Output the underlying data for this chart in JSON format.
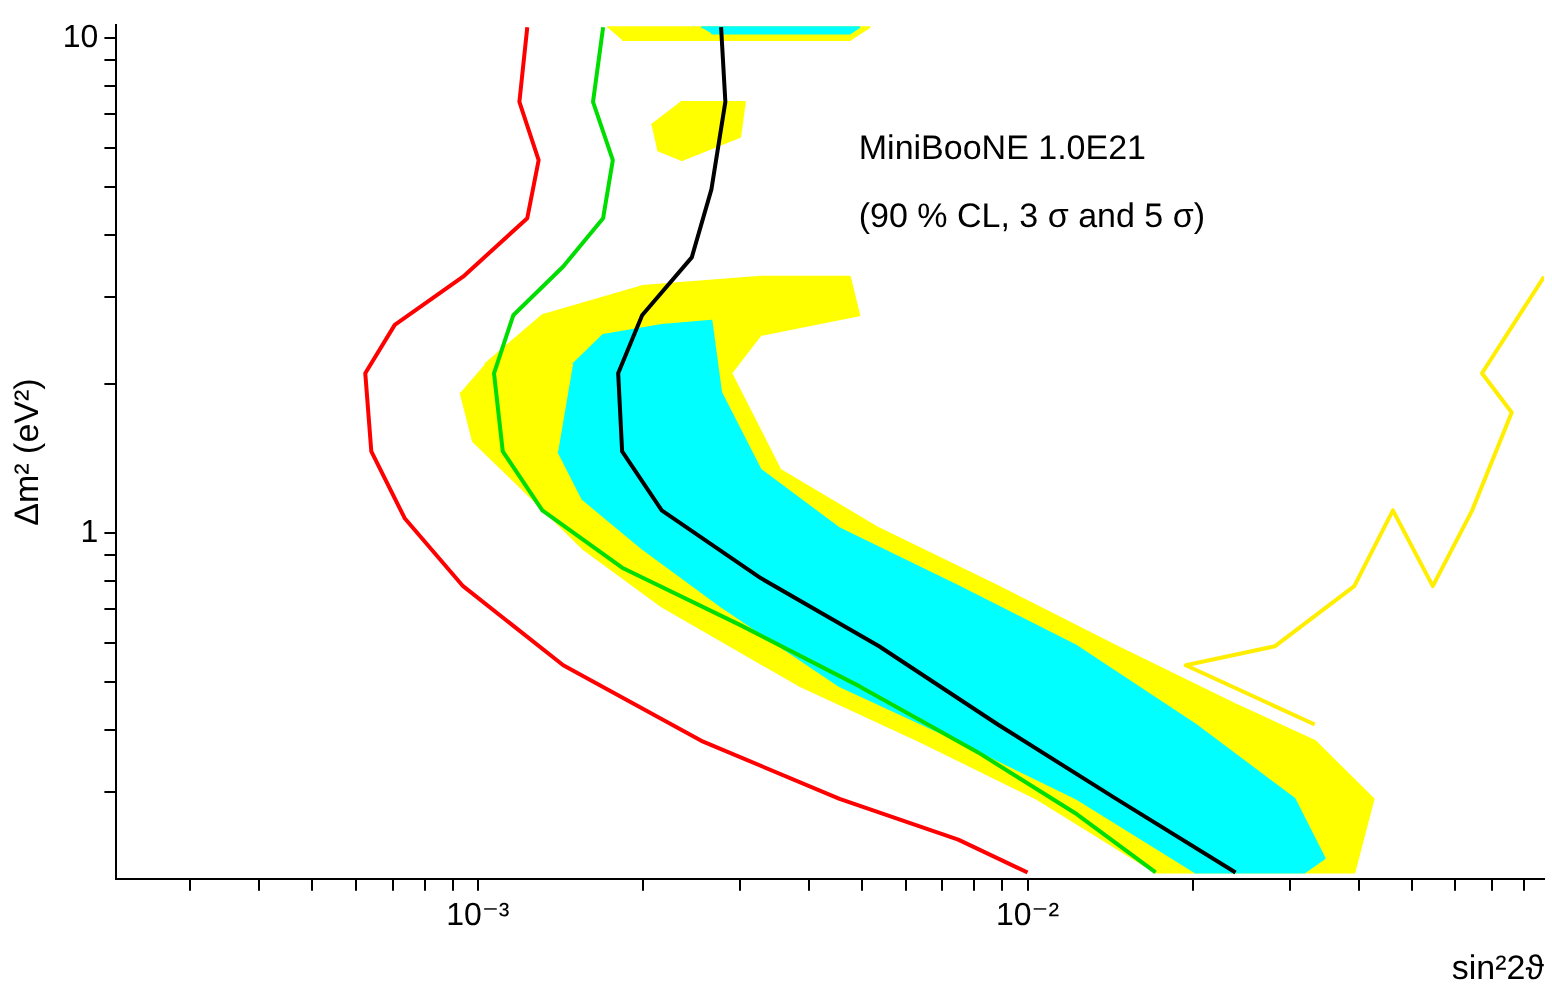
{
  "chart_data": {
    "type": "line",
    "xlabel": "sin²2ϑ",
    "ylabel": "Δm² (eV²)",
    "log": "xy",
    "grid": false,
    "legend": false,
    "marker": "none",
    "annotations": [
      "MiniBooNE 1.0E21",
      "(90 % CL, 3 σ and 5 σ)"
    ],
    "xlim": [
      0.00022,
      0.087
    ],
    "ylim": [
      0.2,
      10.6
    ],
    "xticks": [
      {
        "value": 0.0003,
        "label": null
      },
      {
        "value": 0.0004,
        "label": null
      },
      {
        "value": 0.0005,
        "label": null
      },
      {
        "value": 0.0006,
        "label": null
      },
      {
        "value": 0.0007,
        "label": null
      },
      {
        "value": 0.0008,
        "label": null
      },
      {
        "value": 0.0009,
        "label": null
      },
      {
        "value": 0.001,
        "label": "10⁻³"
      },
      {
        "value": 0.002,
        "label": null
      },
      {
        "value": 0.003,
        "label": null
      },
      {
        "value": 0.004,
        "label": null
      },
      {
        "value": 0.005,
        "label": null
      },
      {
        "value": 0.006,
        "label": null
      },
      {
        "value": 0.007,
        "label": null
      },
      {
        "value": 0.008,
        "label": null
      },
      {
        "value": 0.009,
        "label": null
      },
      {
        "value": 0.01,
        "label": "10⁻²"
      },
      {
        "value": 0.02,
        "label": null
      },
      {
        "value": 0.03,
        "label": null
      },
      {
        "value": 0.04,
        "label": null
      },
      {
        "value": 0.05,
        "label": null
      },
      {
        "value": 0.06,
        "label": null
      },
      {
        "value": 0.07,
        "label": null
      },
      {
        "value": 0.08,
        "label": null
      }
    ],
    "yticks": [
      {
        "value": 0.3,
        "label": null
      },
      {
        "value": 0.4,
        "label": null
      },
      {
        "value": 0.5,
        "label": null
      },
      {
        "value": 0.6,
        "label": null
      },
      {
        "value": 0.7,
        "label": null
      },
      {
        "value": 0.8,
        "label": null
      },
      {
        "value": 0.9,
        "label": null
      },
      1,
      {
        "value": 2,
        "label": null
      },
      {
        "value": 3,
        "label": null
      },
      {
        "value": 4,
        "label": null
      },
      {
        "value": 5,
        "label": null
      },
      {
        "value": 6,
        "label": null
      },
      {
        "value": 7,
        "label": null
      },
      {
        "value": 8,
        "label": null
      },
      {
        "value": 9,
        "label": null
      },
      10
    ],
    "series": [
      {
        "type": "area",
        "color": "#ffff00",
        "x": [
          0.00103,
          0.00131,
          0.00199,
          0.00327,
          0.00475,
          0.00494,
          0.00327,
          0.00289,
          0.00355,
          0.00537,
          0.00883,
          0.0145,
          0.0239,
          0.0333,
          0.0426,
          0.0393,
          0.0171,
          0.0104,
          0.00634,
          0.00386,
          0.00216,
          0.00155,
          0.00121,
          0.00098,
          0.00093
        ],
        "values": [
          2.19,
          2.75,
          3.15,
          3.29,
          3.29,
          2.75,
          2.51,
          2.1,
          1.34,
          1.02,
          0.78,
          0.59,
          0.45,
          0.38,
          0.29,
          0.206,
          0.206,
          0.29,
          0.38,
          0.49,
          0.71,
          0.93,
          1.22,
          1.53,
          1.92
        ]
      },
      {
        "type": "area",
        "color": "#ffff00",
        "x": [
          0.00207,
          0.00235,
          0.00306,
          0.003,
          0.00235,
          0.00212
        ],
        "values": [
          6.66,
          7.42,
          7.42,
          6.31,
          5.66,
          5.93
        ]
      },
      {
        "type": "area",
        "color": "#ffff00",
        "x": [
          0.00172,
          0.00516,
          0.00475,
          0.00183
        ],
        "values": [
          10.5,
          10.5,
          9.9,
          9.9
        ]
      },
      {
        "type": "area",
        "color": "#00ffff",
        "x": [
          0.00149,
          0.00169,
          0.00216,
          0.00266,
          0.00277,
          0.00327,
          0.00455,
          0.00748,
          0.0123,
          0.0202,
          0.0306,
          0.0347,
          0.0319,
          0.0202,
          0.0123,
          0.00748,
          0.00455,
          0.00277,
          0.00199,
          0.00155,
          0.0014
        ],
        "values": [
          2.19,
          2.51,
          2.63,
          2.68,
          1.92,
          1.34,
          1.02,
          0.78,
          0.59,
          0.41,
          0.29,
          0.22,
          0.206,
          0.206,
          0.29,
          0.38,
          0.49,
          0.71,
          0.93,
          1.17,
          1.46
        ]
      },
      {
        "type": "area",
        "color": "#00ffff",
        "x": [
          0.00255,
          0.00494,
          0.00475,
          0.00266
        ],
        "values": [
          10.5,
          10.5,
          10.2,
          10.2
        ]
      },
      {
        "color": "#ffee00",
        "x": [
          0.0333,
          0.0194,
          0.0282,
          0.0393,
          0.0462,
          0.0546,
          0.0644,
          0.076,
          0.0671,
          0.087
        ],
        "values": [
          0.41,
          0.54,
          0.59,
          0.78,
          1.11,
          0.78,
          1.11,
          1.75,
          2.1,
          3.29
        ]
      },
      {
        "color": "#ff0000",
        "x": [
          0.00123,
          0.00119,
          0.00129,
          0.00123,
          0.00094,
          0.000706,
          0.000624,
          0.00064,
          0.000736,
          0.00094,
          0.00143,
          0.00255,
          0.00455,
          0.00748,
          0.01
        ],
        "values": [
          10.5,
          7.42,
          5.66,
          4.32,
          3.29,
          2.63,
          2.1,
          1.46,
          1.07,
          0.78,
          0.54,
          0.38,
          0.29,
          0.24,
          0.206
        ]
      },
      {
        "color": "#00dd00",
        "x": [
          0.00169,
          0.00162,
          0.00176,
          0.00169,
          0.00143,
          0.00116,
          0.00107,
          0.00111,
          0.00131,
          0.00183,
          0.00301,
          0.00494,
          0.00813,
          0.0123,
          0.0171
        ],
        "values": [
          10.5,
          7.42,
          5.66,
          4.32,
          3.45,
          2.75,
          2.1,
          1.46,
          1.11,
          0.85,
          0.65,
          0.49,
          0.36,
          0.27,
          0.206
        ]
      },
      {
        "color": "#000000",
        "x": [
          0.00277,
          0.00282,
          0.00266,
          0.00245,
          0.00199,
          0.0018,
          0.00183,
          0.00216,
          0.00327,
          0.00537,
          0.00883,
          0.0145,
          0.0239
        ],
        "values": [
          10.5,
          7.42,
          4.94,
          3.6,
          2.75,
          2.1,
          1.46,
          1.11,
          0.81,
          0.59,
          0.41,
          0.29,
          0.206
        ]
      }
    ]
  }
}
